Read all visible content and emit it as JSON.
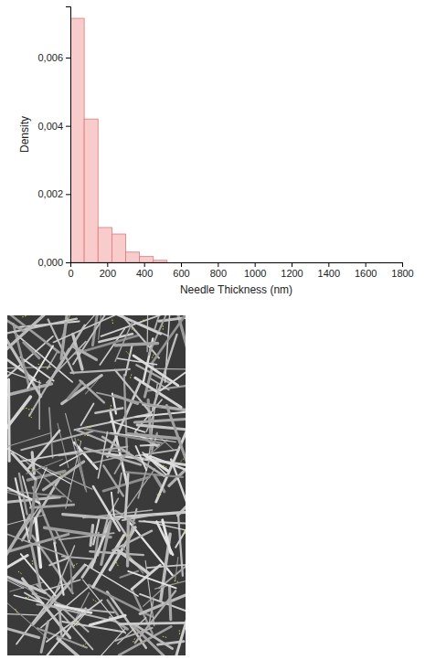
{
  "chart_data": {
    "type": "histogram",
    "x_label": "Needle Thickness (nm)",
    "y_label": "Density",
    "bins": [
      0,
      75,
      150,
      225,
      300,
      375,
      450,
      525
    ],
    "values": [
      0.00715,
      0.0042,
      0.00102,
      0.00083,
      0.0003,
      0.00017,
      6e-05
    ],
    "color": "#f9cccc",
    "xlim": [
      0,
      1800
    ],
    "xticks": [
      0,
      200,
      400,
      600,
      800,
      1000,
      1200,
      1400,
      1600,
      1800
    ],
    "ylim": [
      0,
      0.0075
    ],
    "yticks": [
      {
        "value": 0,
        "label": "0,000"
      },
      {
        "value": 0.002,
        "label": "0,002"
      },
      {
        "value": 0.004,
        "label": "0,004"
      },
      {
        "value": 0.006,
        "label": "0,006"
      }
    ],
    "grid": false
  }
}
